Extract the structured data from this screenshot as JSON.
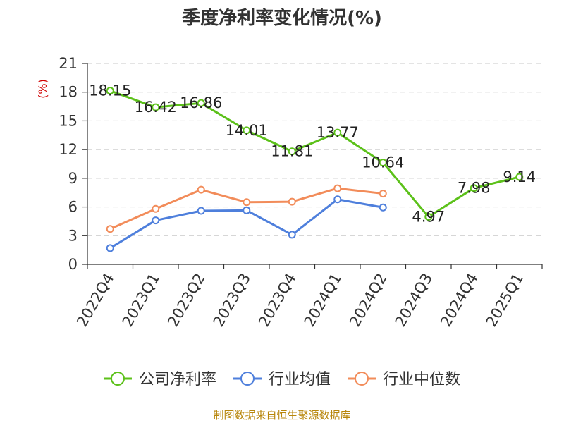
{
  "chart_data": {
    "type": "line",
    "title": "季度净利率变化情况(%)",
    "ylabel": "(%)",
    "categories": [
      "2022Q4",
      "2023Q1",
      "2023Q2",
      "2023Q3",
      "2023Q4",
      "2024Q1",
      "2024Q2",
      "2024Q3",
      "2024Q4",
      "2025Q1"
    ],
    "yticks": [
      0,
      3,
      6,
      9,
      12,
      15,
      18,
      21
    ],
    "ylim": [
      0,
      21
    ],
    "grid": true,
    "legend_position": "bottom",
    "series": [
      {
        "name": "公司净利率",
        "color": "#5cc11a",
        "show_labels": true,
        "values": [
          18.15,
          16.42,
          16.86,
          14.01,
          11.81,
          13.77,
          10.64,
          4.97,
          7.98,
          9.14
        ],
        "labels": [
          "18.15",
          "16.42",
          "16.86",
          "14.01",
          "11.81",
          "13.77",
          "10.64",
          "4.97",
          "7.98",
          "9.14"
        ]
      },
      {
        "name": "行业均值",
        "color": "#4e7fdc",
        "show_labels": false,
        "values": [
          1.7,
          4.6,
          5.6,
          5.65,
          3.1,
          6.8,
          5.95,
          null,
          null,
          null
        ]
      },
      {
        "name": "行业中位数",
        "color": "#f28c5a",
        "show_labels": false,
        "values": [
          3.7,
          5.8,
          7.8,
          6.5,
          6.55,
          7.95,
          7.4,
          null,
          null,
          null
        ]
      }
    ]
  },
  "source": "制图数据来自恒生聚源数据库"
}
